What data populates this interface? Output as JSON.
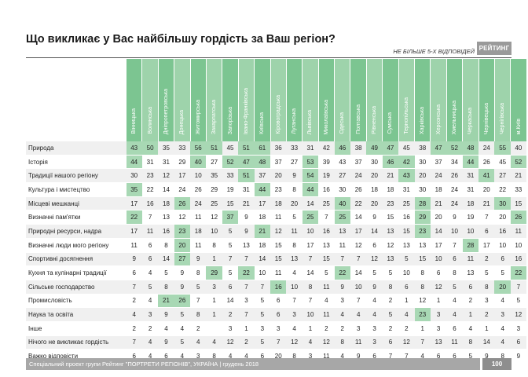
{
  "title": "Що викликає у Вас найбільшу гордість за Ваш регіон?",
  "note": "НЕ БІЛЬШЕ 5-Х ВІДПОВІДЕЙ",
  "brand": "РЕЙТИНГ",
  "regions": [
    "Вінницька",
    "Волинська",
    "Дніпропетровська",
    "Донецька",
    "Житомирська",
    "Закарпатська",
    "Запорізька",
    "Івано-Франківська",
    "Київська",
    "Кіровоградська",
    "Луганська",
    "Львівська",
    "Миколаївська",
    "Одеська",
    "Полтавська",
    "Рівненська",
    "Сумська",
    "Тернопільська",
    "Харківська",
    "Херсонська",
    "Хмельницька",
    "Черкаська",
    "Чернівецька",
    "Чернігівська",
    "м.Київ"
  ],
  "rows": [
    {
      "label": "Природа",
      "values": [
        "43",
        "50",
        "35",
        "33",
        "56",
        "51",
        "45",
        "51",
        "61",
        "36",
        "33",
        "31",
        "42",
        "46",
        "38",
        "49",
        "47",
        "45",
        "38",
        "47",
        "52",
        "48",
        "24",
        "55",
        "40"
      ],
      "hl": [
        0,
        1,
        4,
        5,
        7,
        8,
        13,
        15,
        16,
        19,
        20,
        21,
        23
      ]
    },
    {
      "label": "Історія",
      "values": [
        "44",
        "31",
        "31",
        "29",
        "40",
        "27",
        "52",
        "47",
        "48",
        "37",
        "27",
        "53",
        "39",
        "43",
        "37",
        "30",
        "46",
        "42",
        "30",
        "37",
        "34",
        "44",
        "26",
        "45",
        "52"
      ],
      "hl": [
        0,
        4,
        6,
        7,
        8,
        11,
        16,
        17,
        21,
        24
      ]
    },
    {
      "label": "Традиції нашого регіону",
      "values": [
        "30",
        "23",
        "12",
        "17",
        "10",
        "35",
        "33",
        "51",
        "37",
        "20",
        "9",
        "54",
        "19",
        "27",
        "24",
        "20",
        "21",
        "43",
        "20",
        "24",
        "26",
        "31",
        "41",
        "27",
        "21"
      ],
      "hl": [
        7,
        11,
        17,
        22
      ]
    },
    {
      "label": "Культура і мистецтво",
      "values": [
        "35",
        "22",
        "14",
        "24",
        "26",
        "29",
        "19",
        "31",
        "44",
        "23",
        "8",
        "44",
        "16",
        "30",
        "26",
        "18",
        "18",
        "31",
        "30",
        "18",
        "24",
        "31",
        "20",
        "22",
        "33"
      ],
      "hl": [
        0,
        8,
        11
      ]
    },
    {
      "label": "Місцеві мешканці",
      "values": [
        "17",
        "16",
        "18",
        "26",
        "24",
        "25",
        "15",
        "21",
        "17",
        "18",
        "20",
        "14",
        "25",
        "40",
        "22",
        "20",
        "23",
        "25",
        "28",
        "21",
        "24",
        "18",
        "21",
        "30",
        "15"
      ],
      "hl": [
        3,
        13,
        18,
        23
      ]
    },
    {
      "label": "Визначні пам'ятки",
      "values": [
        "22",
        "7",
        "13",
        "12",
        "11",
        "12",
        "37",
        "9",
        "18",
        "11",
        "5",
        "25",
        "7",
        "25",
        "14",
        "9",
        "15",
        "16",
        "29",
        "20",
        "9",
        "19",
        "7",
        "20",
        "26"
      ],
      "hl": [
        0,
        6,
        11,
        13,
        18,
        24
      ]
    },
    {
      "label": "Природні ресурси, надра",
      "values": [
        "17",
        "11",
        "16",
        "23",
        "18",
        "10",
        "5",
        "9",
        "21",
        "12",
        "11",
        "10",
        "16",
        "13",
        "17",
        "14",
        "13",
        "15",
        "23",
        "14",
        "10",
        "10",
        "6",
        "16",
        "11"
      ],
      "hl": [
        3,
        8,
        18
      ]
    },
    {
      "label": "Визначні люди мого регіону",
      "values": [
        "11",
        "6",
        "8",
        "20",
        "11",
        "8",
        "5",
        "13",
        "18",
        "15",
        "8",
        "17",
        "13",
        "11",
        "12",
        "6",
        "12",
        "13",
        "13",
        "17",
        "7",
        "28",
        "17",
        "10",
        "10"
      ],
      "hl": [
        3,
        21
      ]
    },
    {
      "label": "Спортивні досягнення",
      "values": [
        "9",
        "6",
        "14",
        "27",
        "9",
        "1",
        "7",
        "7",
        "14",
        "15",
        "13",
        "7",
        "15",
        "7",
        "7",
        "12",
        "13",
        "5",
        "15",
        "10",
        "6",
        "11",
        "2",
        "6",
        "16"
      ],
      "hl": [
        3
      ]
    },
    {
      "label": "Кухня та кулінарні традиції",
      "values": [
        "6",
        "4",
        "5",
        "9",
        "8",
        "29",
        "5",
        "22",
        "10",
        "11",
        "4",
        "14",
        "5",
        "22",
        "14",
        "5",
        "5",
        "10",
        "8",
        "6",
        "8",
        "13",
        "5",
        "5",
        "22"
      ],
      "hl": [
        5,
        7,
        13,
        24
      ]
    },
    {
      "label": "Сільське господарство",
      "values": [
        "7",
        "5",
        "8",
        "9",
        "5",
        "3",
        "6",
        "7",
        "7",
        "16",
        "10",
        "8",
        "11",
        "9",
        "10",
        "9",
        "8",
        "6",
        "8",
        "12",
        "5",
        "6",
        "8",
        "20",
        "7"
      ],
      "hl": [
        9,
        23
      ]
    },
    {
      "label": "Промисловість",
      "values": [
        "2",
        "4",
        "21",
        "26",
        "7",
        "1",
        "14",
        "3",
        "5",
        "6",
        "7",
        "7",
        "4",
        "3",
        "7",
        "4",
        "2",
        "1",
        "12",
        "1",
        "4",
        "2",
        "3",
        "4",
        "5"
      ],
      "hl": [
        2,
        3
      ]
    },
    {
      "label": "Наука та освіта",
      "values": [
        "4",
        "3",
        "9",
        "5",
        "8",
        "1",
        "2",
        "7",
        "5",
        "6",
        "3",
        "10",
        "11",
        "4",
        "4",
        "4",
        "5",
        "4",
        "23",
        "3",
        "4",
        "1",
        "2",
        "3",
        "12"
      ],
      "hl": [
        18
      ]
    },
    {
      "label": "Інше",
      "values": [
        "2",
        "2",
        "4",
        "4",
        "2",
        "",
        "3",
        "1",
        "3",
        "3",
        "4",
        "1",
        "2",
        "2",
        "3",
        "3",
        "2",
        "2",
        "1",
        "3",
        "6",
        "4",
        "1",
        "4",
        "3"
      ],
      "hl": []
    },
    {
      "label": "Нічого не викликає гордість",
      "values": [
        "7",
        "4",
        "9",
        "5",
        "4",
        "4",
        "12",
        "2",
        "5",
        "7",
        "12",
        "4",
        "12",
        "8",
        "11",
        "3",
        "6",
        "12",
        "7",
        "13",
        "11",
        "8",
        "14",
        "4",
        "6"
      ],
      "hl": []
    },
    {
      "label": "Важко відповісти",
      "values": [
        "6",
        "4",
        "6",
        "4",
        "3",
        "8",
        "4",
        "4",
        "6",
        "20",
        "8",
        "3",
        "11",
        "4",
        "9",
        "6",
        "7",
        "7",
        "4",
        "6",
        "6",
        "5",
        "9",
        "8",
        "9"
      ],
      "hl": []
    }
  ],
  "footer": "Спеціальний проект групи Рейтинг \"ПОРТРЕТИ РЕГІОНІВ\", УКРАЇНА | грудень 2018",
  "page_number": "100"
}
